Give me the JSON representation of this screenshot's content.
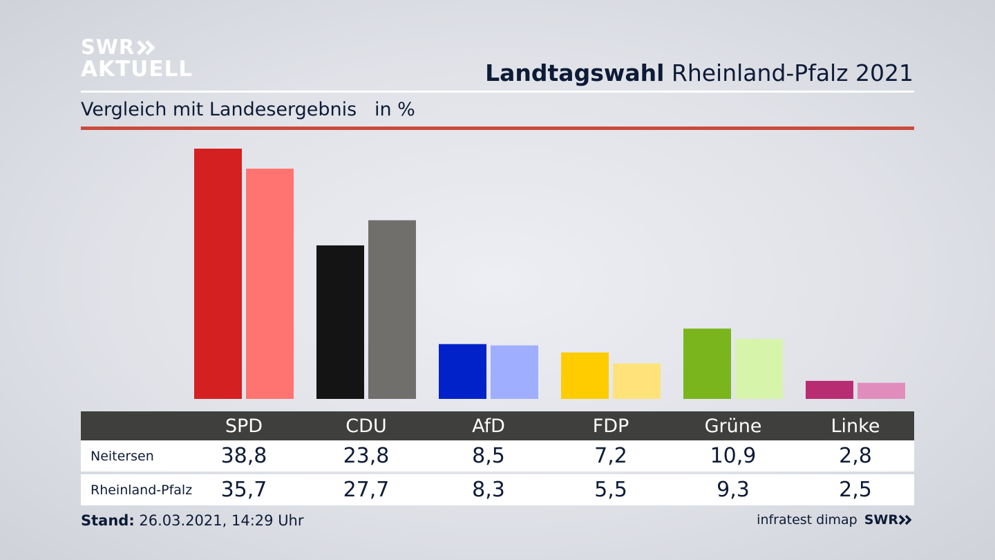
{
  "brand": {
    "line1": "SWR",
    "line2": "AKTUELL"
  },
  "header": {
    "title_bold": "Landtagswahl",
    "title_rest": "Rheinland-Pfalz 2021"
  },
  "subtitle": {
    "text": "Vergleich mit Landesergebnis",
    "unit": "in %"
  },
  "footer": {
    "stand_label": "Stand:",
    "stand_value": "26.03.2021, 14:29 Uhr",
    "source": "infratest dimap",
    "logo": "SWR"
  },
  "chart_data": {
    "type": "bar",
    "categories": [
      "SPD",
      "CDU",
      "AfD",
      "FDP",
      "Grüne",
      "Linke"
    ],
    "series": [
      {
        "name": "Neitersen",
        "values": [
          38.8,
          23.8,
          8.5,
          7.2,
          10.9,
          2.8
        ],
        "display": [
          "38,8",
          "23,8",
          "8,5",
          "7,2",
          "10,9",
          "2,8"
        ],
        "colors": [
          "#d42020",
          "#141414",
          "#0022c8",
          "#ffcc00",
          "#7ab51d",
          "#b82d72"
        ]
      },
      {
        "name": "Rheinland-Pfalz",
        "values": [
          35.7,
          27.7,
          8.3,
          5.5,
          9.3,
          2.5
        ],
        "display": [
          "35,7",
          "27,7",
          "8,3",
          "5,5",
          "9,3",
          "2,5"
        ],
        "colors": [
          "#ff7470",
          "#706f6c",
          "#a0aeff",
          "#ffe27a",
          "#d6f5aa",
          "#e08dbd"
        ]
      }
    ],
    "unit": "%",
    "grid": false,
    "legend": "table-below"
  }
}
